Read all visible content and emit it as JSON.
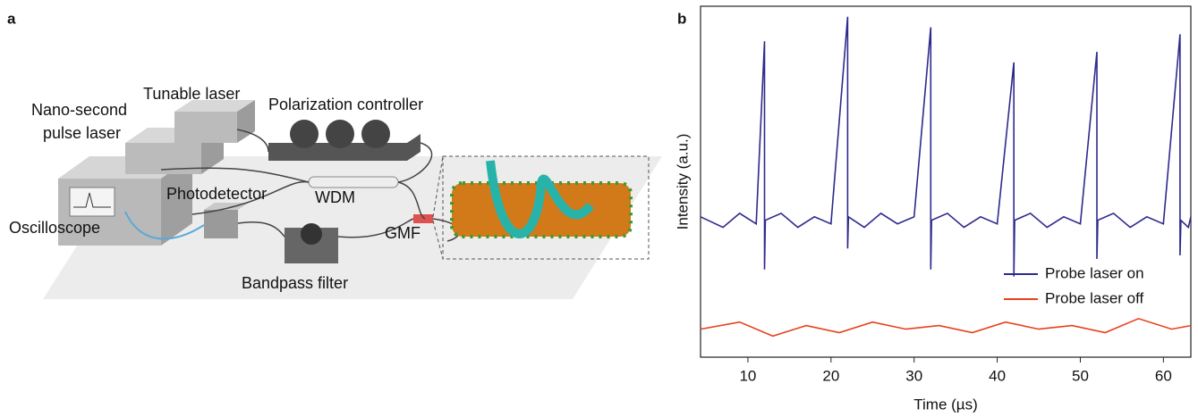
{
  "panels": {
    "a": "a",
    "b": "b"
  },
  "diagram": {
    "labels": [
      "Tunable laser",
      "Nano-second",
      "pulse laser",
      "Polarization controller",
      "Photodetector",
      "WDM",
      "Oscilloscope",
      "GMF",
      "Bandpass filter"
    ]
  },
  "chart_data": {
    "type": "line",
    "xlabel": "Time (µs)",
    "ylabel": "Intensity (a.u.)",
    "xlim": [
      4.3,
      63.3
    ],
    "xticks": [
      10,
      20,
      30,
      40,
      50,
      60
    ],
    "ylim": [
      0,
      1
    ],
    "legend": "lower right",
    "series": [
      {
        "name": "Probe laser on",
        "color": "#2e2a8c",
        "x": [
          4.3,
          7,
          9,
          11,
          12,
          12,
          12.1,
          14,
          16,
          18,
          20,
          22,
          22,
          22.1,
          24,
          26,
          28,
          30,
          32,
          32,
          32.1,
          34,
          36,
          38,
          40,
          42,
          42,
          42.1,
          44,
          46,
          48,
          50,
          52,
          52,
          52.1,
          54,
          56,
          58,
          60,
          62,
          62,
          62.1,
          63,
          63.3
        ],
        "values": [
          0.4,
          0.37,
          0.41,
          0.38,
          0.9,
          0.25,
          0.39,
          0.41,
          0.37,
          0.4,
          0.38,
          0.97,
          0.31,
          0.4,
          0.37,
          0.41,
          0.38,
          0.4,
          0.94,
          0.25,
          0.39,
          0.41,
          0.37,
          0.4,
          0.38,
          0.84,
          0.23,
          0.39,
          0.41,
          0.37,
          0.4,
          0.38,
          0.87,
          0.28,
          0.39,
          0.41,
          0.37,
          0.4,
          0.38,
          0.92,
          0.29,
          0.39,
          0.37,
          0.4
        ]
      },
      {
        "name": "Probe laser off",
        "color": "#e8401c",
        "x": [
          4.3,
          9,
          13,
          17,
          21,
          25,
          29,
          33,
          37,
          41,
          45,
          49,
          53,
          57,
          61,
          63.3
        ],
        "values": [
          0.08,
          0.1,
          0.06,
          0.09,
          0.07,
          0.1,
          0.08,
          0.09,
          0.07,
          0.1,
          0.08,
          0.09,
          0.07,
          0.11,
          0.08,
          0.09
        ]
      }
    ]
  }
}
